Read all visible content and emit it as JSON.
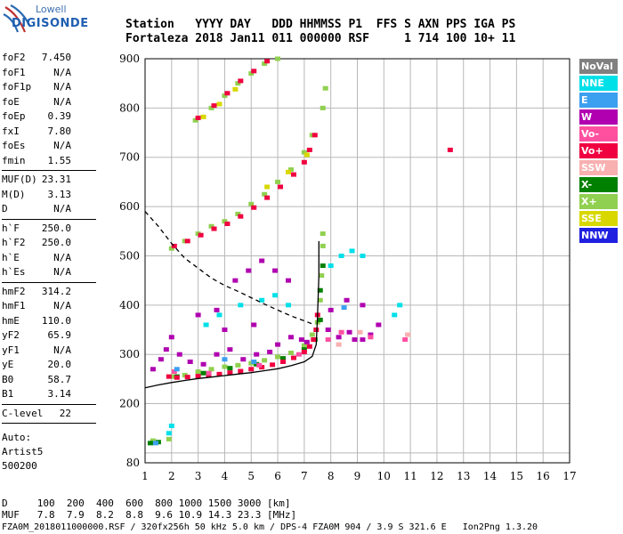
{
  "logo": {
    "line1": "Lowell",
    "line2": "DIGISONDE"
  },
  "header": {
    "labels": "Station   YYYY DAY   DDD HHMMSS P1  FFS S AXN PPS IGA PS",
    "values": "Fortaleza 2018 Jan11 011 000000 RSF     1 714 100 10+ 11"
  },
  "params": [
    {
      "name": "foF2",
      "value": "7.450"
    },
    {
      "name": "foF1",
      "value": "N/A"
    },
    {
      "name": "foF1p",
      "value": "N/A"
    },
    {
      "name": "foE",
      "value": "N/A"
    },
    {
      "name": "foEp",
      "value": "0.39"
    },
    {
      "name": "fxI",
      "value": "7.80"
    },
    {
      "name": "foEs",
      "value": "N/A"
    },
    {
      "name": "fmin",
      "value": "1.55"
    },
    {
      "name": "MUF(D)",
      "value": "23.31"
    },
    {
      "name": "M(D)",
      "value": "3.13"
    },
    {
      "name": "D",
      "value": "N/A"
    },
    {
      "name": "h`F",
      "value": "250.0"
    },
    {
      "name": "h`F2",
      "value": "250.0"
    },
    {
      "name": "h`E",
      "value": "N/A"
    },
    {
      "name": "h`Es",
      "value": "N/A"
    },
    {
      "name": "hmF2",
      "value": "314.2"
    },
    {
      "name": "hmF1",
      "value": "N/A"
    },
    {
      "name": "hmE",
      "value": "110.0"
    },
    {
      "name": "yF2",
      "value": "65.9"
    },
    {
      "name": "yF1",
      "value": "N/A"
    },
    {
      "name": "yE",
      "value": "20.0"
    },
    {
      "name": "B0",
      "value": "58.7"
    },
    {
      "name": "B1",
      "value": "3.14"
    },
    {
      "name": "C-level",
      "value": "22"
    }
  ],
  "auto": {
    "line1": "Auto:",
    "line2": "Artist5",
    "line3": "500200"
  },
  "legend": [
    {
      "label": "NoVal",
      "bg": "#808080",
      "fg": "#ffffff"
    },
    {
      "label": "NNE",
      "bg": "#00e0e8",
      "fg": "#ffffff"
    },
    {
      "label": "E",
      "bg": "#3ca0f0",
      "fg": "#ffffff"
    },
    {
      "label": "W",
      "bg": "#b000b0",
      "fg": "#ffffff"
    },
    {
      "label": "Vo-",
      "bg": "#ff50a0",
      "fg": "#ffffff"
    },
    {
      "label": "Vo+",
      "bg": "#f00040",
      "fg": "#ffffff"
    },
    {
      "label": "SSW",
      "bg": "#f8b0b0",
      "fg": "#ffffff"
    },
    {
      "label": "X-",
      "bg": "#008000",
      "fg": "#ffffff"
    },
    {
      "label": "X+",
      "bg": "#90d050",
      "fg": "#ffffff"
    },
    {
      "label": "SSE",
      "bg": "#d8d800",
      "fg": "#ffffff"
    },
    {
      "label": "NNW",
      "bg": "#2020e0",
      "fg": "#ffffff"
    }
  ],
  "footer": {
    "line1": "D     100  200  400  600  800 1000 1500 3000 [km]",
    "line2": "MUF   7.8  7.9  8.2  8.8  9.6 10.9 14.3 23.3 [MHz]",
    "line3": "FZA0M_2018011000000.RSF / 320fx256h 50 kHz 5.0 km / DPS-4 FZA0M 904 / 3.9 S 321.6 E   Ion2Png 1.3.20"
  },
  "chart_data": {
    "type": "scatter",
    "title": "",
    "xlabel": "",
    "ylabel": "",
    "xlim": [
      1,
      17
    ],
    "ylim": [
      80,
      900
    ],
    "x_ticks": [
      1,
      2,
      3,
      4,
      5,
      6,
      7,
      8,
      9,
      10,
      11,
      12,
      13,
      14,
      15,
      16,
      17
    ],
    "y_ticks": [
      80,
      200,
      300,
      400,
      500,
      600,
      700,
      800,
      900
    ],
    "grid": true,
    "series": [
      {
        "name": "X+",
        "color": "#90d050",
        "points": [
          [
            1.3,
            125
          ],
          [
            1.9,
            128
          ],
          [
            2.0,
            255
          ],
          [
            2.5,
            258
          ],
          [
            3.0,
            265
          ],
          [
            3.5,
            270
          ],
          [
            4.0,
            275
          ],
          [
            4.5,
            278
          ],
          [
            5.0,
            282
          ],
          [
            5.5,
            288
          ],
          [
            6.0,
            295
          ],
          [
            6.5,
            303
          ],
          [
            7.0,
            318
          ],
          [
            7.3,
            340
          ],
          [
            7.5,
            365
          ],
          [
            7.6,
            410
          ],
          [
            7.65,
            460
          ],
          [
            7.7,
            520
          ],
          [
            7.7,
            545
          ],
          [
            2.0,
            515
          ],
          [
            2.5,
            530
          ],
          [
            3.0,
            545
          ],
          [
            3.5,
            560
          ],
          [
            4.0,
            570
          ],
          [
            4.5,
            585
          ],
          [
            5.0,
            605
          ],
          [
            5.5,
            625
          ],
          [
            6.0,
            650
          ],
          [
            6.5,
            675
          ],
          [
            7.0,
            710
          ],
          [
            7.3,
            745
          ],
          [
            7.7,
            800
          ],
          [
            7.8,
            840
          ],
          [
            2.9,
            775
          ],
          [
            3.5,
            800
          ],
          [
            4.0,
            825
          ],
          [
            4.5,
            850
          ],
          [
            5.0,
            870
          ],
          [
            5.5,
            890
          ],
          [
            6.0,
            900
          ]
        ]
      },
      {
        "name": "X-",
        "color": "#008000",
        "points": [
          [
            1.2,
            120
          ],
          [
            1.5,
            122
          ],
          [
            2.2,
            255
          ],
          [
            3.2,
            262
          ],
          [
            4.2,
            272
          ],
          [
            5.2,
            280
          ],
          [
            6.2,
            292
          ],
          [
            7.0,
            310
          ],
          [
            7.4,
            330
          ],
          [
            7.6,
            370
          ],
          [
            7.6,
            430
          ],
          [
            7.7,
            480
          ]
        ]
      },
      {
        "name": "Vo+",
        "color": "#f00040",
        "points": [
          [
            1.9,
            255
          ],
          [
            2.2,
            253
          ],
          [
            2.6,
            254
          ],
          [
            3.0,
            256
          ],
          [
            3.4,
            258
          ],
          [
            3.8,
            260
          ],
          [
            4.2,
            263
          ],
          [
            4.6,
            266
          ],
          [
            5.0,
            270
          ],
          [
            5.4,
            274
          ],
          [
            5.8,
            279
          ],
          [
            6.2,
            285
          ],
          [
            6.6,
            293
          ],
          [
            7.0,
            305
          ],
          [
            7.2,
            316
          ],
          [
            7.35,
            330
          ],
          [
            7.45,
            350
          ],
          [
            7.5,
            380
          ],
          [
            2.1,
            520
          ],
          [
            2.6,
            530
          ],
          [
            3.1,
            542
          ],
          [
            3.6,
            555
          ],
          [
            4.1,
            565
          ],
          [
            4.6,
            580
          ],
          [
            5.1,
            598
          ],
          [
            5.6,
            618
          ],
          [
            6.1,
            640
          ],
          [
            6.6,
            665
          ],
          [
            7.0,
            690
          ],
          [
            7.2,
            715
          ],
          [
            7.4,
            745
          ],
          [
            3.0,
            780
          ],
          [
            3.6,
            805
          ],
          [
            4.1,
            830
          ],
          [
            4.6,
            855
          ],
          [
            5.1,
            875
          ],
          [
            5.6,
            895
          ],
          [
            12.5,
            715
          ]
        ]
      },
      {
        "name": "W",
        "color": "#b000b0",
        "points": [
          [
            1.3,
            270
          ],
          [
            1.6,
            290
          ],
          [
            1.8,
            310
          ],
          [
            2.0,
            335
          ],
          [
            2.3,
            300
          ],
          [
            2.7,
            285
          ],
          [
            3.2,
            280
          ],
          [
            3.7,
            300
          ],
          [
            4.2,
            310
          ],
          [
            4.7,
            290
          ],
          [
            5.2,
            300
          ],
          [
            5.7,
            305
          ],
          [
            6.0,
            320
          ],
          [
            6.5,
            335
          ],
          [
            7.1,
            325
          ],
          [
            7.9,
            350
          ],
          [
            8.3,
            335
          ],
          [
            8.7,
            345
          ],
          [
            9.2,
            330
          ],
          [
            9.5,
            340
          ],
          [
            9.8,
            360
          ],
          [
            8.0,
            390
          ],
          [
            8.6,
            410
          ],
          [
            9.2,
            400
          ],
          [
            3.0,
            380
          ],
          [
            3.7,
            390
          ],
          [
            4.4,
            450
          ],
          [
            4.9,
            470
          ],
          [
            5.4,
            490
          ],
          [
            5.9,
            470
          ],
          [
            6.4,
            450
          ],
          [
            4.0,
            350
          ],
          [
            5.1,
            360
          ],
          [
            6.9,
            330
          ],
          [
            8.9,
            330
          ]
        ]
      },
      {
        "name": "Vo-",
        "color": "#ff50a0",
        "points": [
          [
            2.1,
            265
          ],
          [
            3.4,
            262
          ],
          [
            5.3,
            278
          ],
          [
            6.8,
            300
          ],
          [
            7.9,
            330
          ],
          [
            8.4,
            345
          ],
          [
            9.5,
            335
          ],
          [
            10.8,
            330
          ]
        ]
      },
      {
        "name": "NNE",
        "color": "#00e0e8",
        "points": [
          [
            1.9,
            140
          ],
          [
            2.0,
            155
          ],
          [
            3.3,
            360
          ],
          [
            3.8,
            380
          ],
          [
            4.6,
            400
          ],
          [
            5.4,
            410
          ],
          [
            5.9,
            420
          ],
          [
            6.4,
            400
          ],
          [
            8.0,
            480
          ],
          [
            8.4,
            500
          ],
          [
            8.8,
            510
          ],
          [
            9.2,
            500
          ],
          [
            10.6,
            400
          ],
          [
            10.4,
            380
          ]
        ]
      },
      {
        "name": "E",
        "color": "#3ca0f0",
        "points": [
          [
            1.4,
            120
          ],
          [
            2.2,
            270
          ],
          [
            4.0,
            290
          ],
          [
            5.1,
            285
          ],
          [
            8.5,
            395
          ]
        ]
      },
      {
        "name": "SSW",
        "color": "#f8b0b0",
        "points": [
          [
            8.3,
            320
          ],
          [
            10.9,
            340
          ],
          [
            9.1,
            345
          ]
        ]
      },
      {
        "name": "SSE",
        "color": "#d8d800",
        "points": [
          [
            3.2,
            782
          ],
          [
            3.8,
            808
          ],
          [
            4.4,
            838
          ],
          [
            5.6,
            640
          ],
          [
            6.4,
            670
          ],
          [
            7.1,
            705
          ]
        ]
      }
    ],
    "lines": [
      {
        "name": "profile",
        "style": "solid",
        "color": "#000000",
        "points": [
          [
            1.0,
            232
          ],
          [
            1.5,
            238
          ],
          [
            2.0,
            243
          ],
          [
            2.5,
            247
          ],
          [
            3.0,
            251
          ],
          [
            3.5,
            254
          ],
          [
            4.0,
            257
          ],
          [
            4.5,
            260
          ],
          [
            5.0,
            263
          ],
          [
            5.5,
            267
          ],
          [
            6.0,
            271
          ],
          [
            6.5,
            277
          ],
          [
            7.0,
            285
          ],
          [
            7.3,
            296
          ],
          [
            7.45,
            320
          ],
          [
            7.5,
            380
          ],
          [
            7.55,
            460
          ],
          [
            7.55,
            530
          ]
        ]
      },
      {
        "name": "model",
        "style": "dashed",
        "color": "#000000",
        "points": [
          [
            1.0,
            590
          ],
          [
            1.5,
            560
          ],
          [
            2.0,
            525
          ],
          [
            2.5,
            495
          ],
          [
            3.0,
            475
          ],
          [
            3.5,
            455
          ],
          [
            4.0,
            440
          ],
          [
            4.5,
            428
          ],
          [
            5.0,
            415
          ],
          [
            5.5,
            402
          ],
          [
            6.0,
            390
          ],
          [
            6.5,
            378
          ],
          [
            7.0,
            368
          ],
          [
            7.3,
            362
          ]
        ]
      }
    ]
  }
}
